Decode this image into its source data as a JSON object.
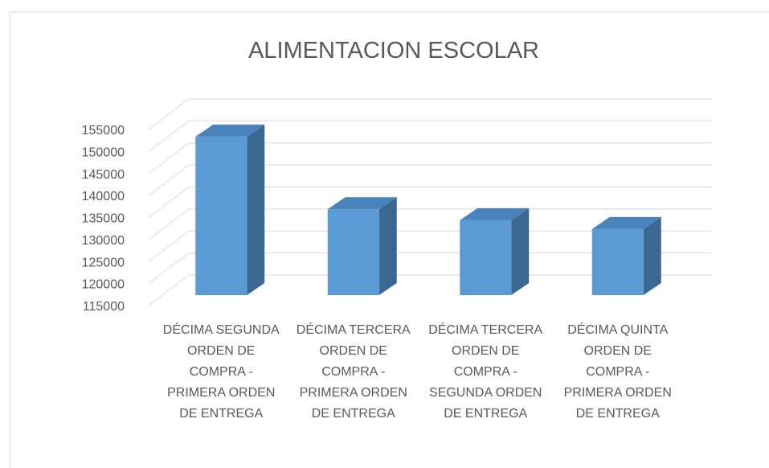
{
  "chart_data": {
    "type": "bar3d",
    "title": "ALIMENTACION ESCOLAR",
    "categories": [
      "DÉCIMA SEGUNDA ORDEN DE COMPRA - PRIMERA ORDEN DE ENTREGA",
      "DÉCIMA TERCERA ORDEN DE COMPRA - PRIMERA ORDEN DE ENTREGA",
      "DÉCIMA TERCERA ORDEN DE COMPRA - SEGUNDA ORDEN DE ENTREGA",
      "DÉCIMA QUINTA ORDEN DE COMPRA - PRIMERA ORDEN DE ENTREGA"
    ],
    "values": [
      151000,
      134500,
      132000,
      130000
    ],
    "color": "#5b9bd5",
    "ylim": [
      115000,
      155000
    ],
    "yticks": [
      115000,
      120000,
      125000,
      130000,
      135000,
      140000,
      145000,
      150000,
      155000
    ],
    "grid": true
  }
}
